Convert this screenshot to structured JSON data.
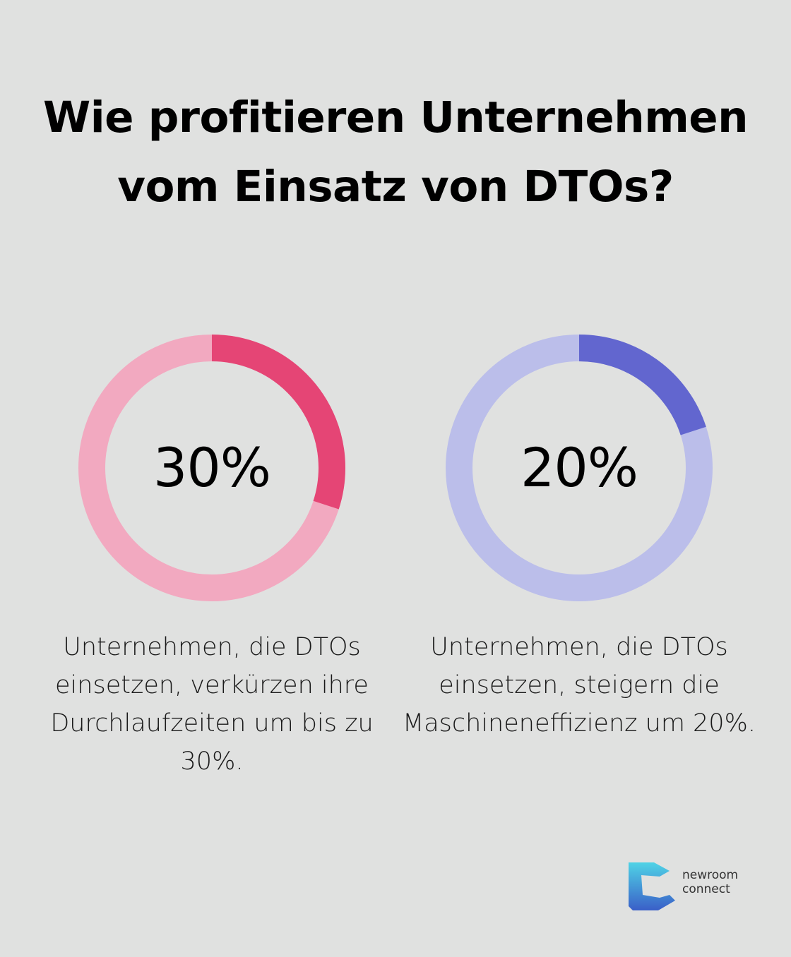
{
  "title": "Wie profitieren Unternehmen vom Einsatz von DTOs?",
  "chart_data": [
    {
      "type": "pie",
      "value_label": "30%",
      "values": [
        30,
        70
      ],
      "caption": "Unternehmen, die DTOs einsetzen, verkürzen ihre Durchlaufzeiten um bis zu 30%.",
      "colors": {
        "highlight": "#e54575",
        "track": "#f2a9c0"
      }
    },
    {
      "type": "pie",
      "value_label": "20%",
      "values": [
        20,
        80
      ],
      "caption": "Unternehmen, die DTOs einsetzen, steigern die Maschineneffizienz um 20%.",
      "colors": {
        "highlight": "#6266cf",
        "track": "#bbbeea"
      }
    }
  ],
  "brand": {
    "line1": "newroom",
    "line2": "connect",
    "colors": {
      "top": "#4fd3e6",
      "bottom": "#3a5fc8"
    }
  },
  "colors": {
    "background": "#e0e1e0"
  }
}
